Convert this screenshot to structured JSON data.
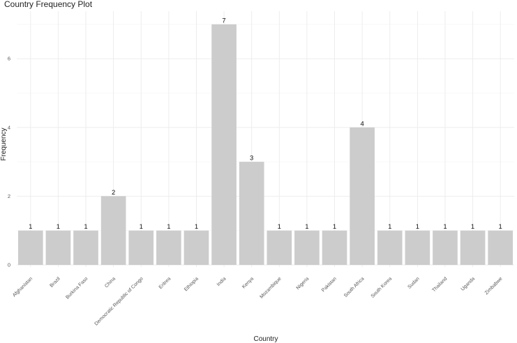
{
  "chart_data": {
    "type": "bar",
    "title": "Country Frequency Plot",
    "xlabel": "Country",
    "ylabel": "Frequency",
    "categories": [
      "Afghanistan",
      "Brazil",
      "Burkina Faso",
      "China",
      "Democratic Republic of Congo",
      "Eritrea",
      "Ethiopia",
      "India",
      "Kenya",
      "Mozambique",
      "Nigeria",
      "Pakistan",
      "South Africa",
      "South Korea",
      "Sudan",
      "Thailand",
      "Uganda",
      "Zimbabwe"
    ],
    "values": [
      1,
      1,
      1,
      2,
      1,
      1,
      1,
      7,
      3,
      1,
      1,
      1,
      4,
      1,
      1,
      1,
      1,
      1
    ],
    "y_ticks": [
      0,
      2,
      4,
      6
    ],
    "ylim": [
      0,
      7.35
    ],
    "grid": true,
    "legend": "none",
    "bar_color": "#cccccc"
  }
}
